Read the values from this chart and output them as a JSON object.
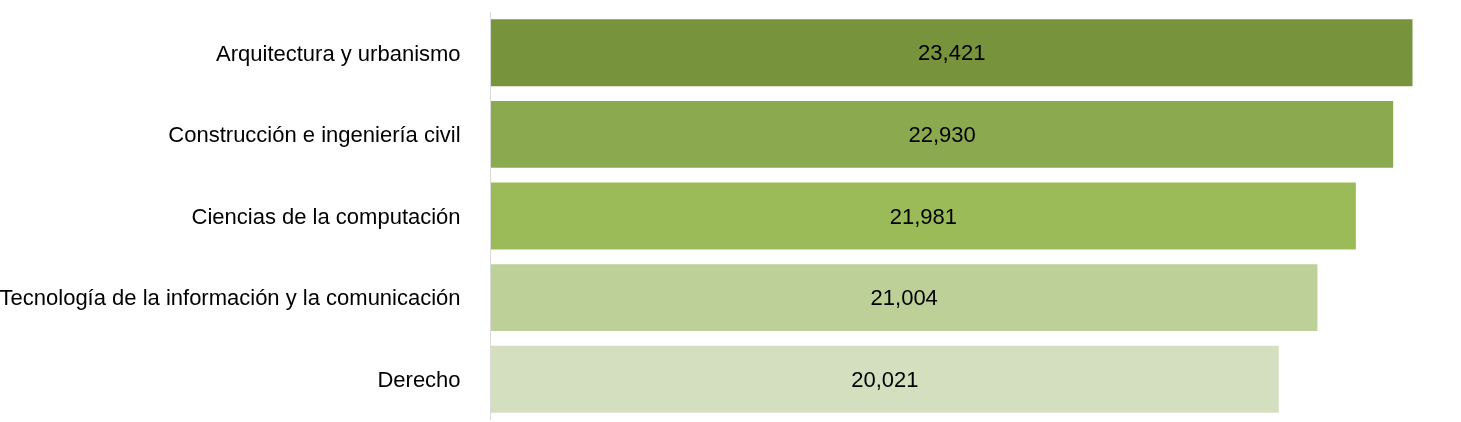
{
  "chart_data": {
    "type": "bar",
    "orientation": "horizontal",
    "categories": [
      "Arquitectura y urbanismo",
      "Construcción e ingeniería civil",
      "Ciencias de la computación",
      "Tecnología de la información y la comunicación",
      "Derecho"
    ],
    "values": [
      23421,
      22930,
      21981,
      21004,
      20021
    ],
    "colors": [
      "#77933c",
      "#8ba94f",
      "#9bbb59",
      "#bcd098",
      "#d3dfbf"
    ],
    "value_labels": [
      "23,421",
      "22,930",
      "21,981",
      "21,004",
      "20,021"
    ],
    "tick_labels": "y",
    "grid": false
  }
}
